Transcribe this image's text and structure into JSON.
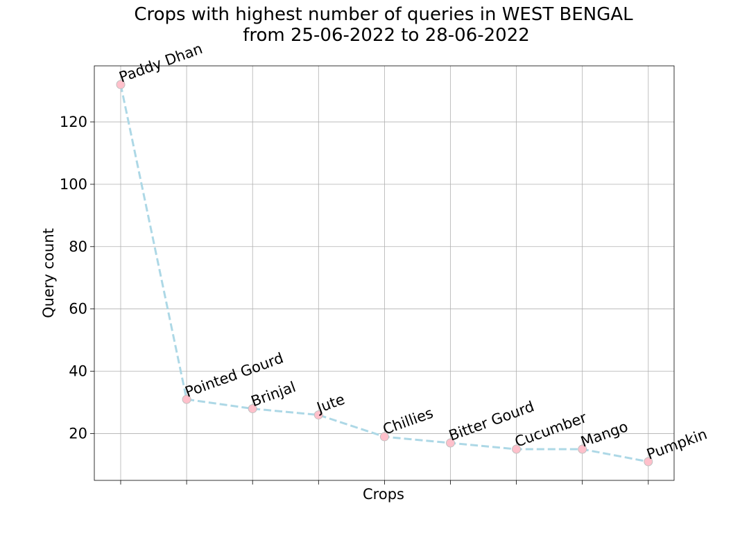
{
  "chart_data": {
    "type": "line",
    "title_line1": "Crops with highest number of queries in WEST BENGAL",
    "title_line2": "from 25-06-2022 to 28-06-2022",
    "xlabel": "Crops",
    "ylabel": "Query count",
    "categories": [
      "Paddy Dhan",
      "Pointed Gourd",
      "Brinjal",
      "Jute",
      "Chillies",
      "Bitter Gourd",
      "Cucumber",
      "Mango",
      "Pumpkin"
    ],
    "values": [
      132,
      31,
      28,
      26,
      19,
      17,
      15,
      15,
      11
    ],
    "yticks": [
      20,
      40,
      60,
      80,
      100,
      120
    ],
    "ylim": [
      5,
      138
    ],
    "grid": true,
    "line_style": "dashed",
    "line_color": "#add8e6",
    "marker_color": "#ffc0cb",
    "marker_edge_color": "#c0c0c0"
  }
}
